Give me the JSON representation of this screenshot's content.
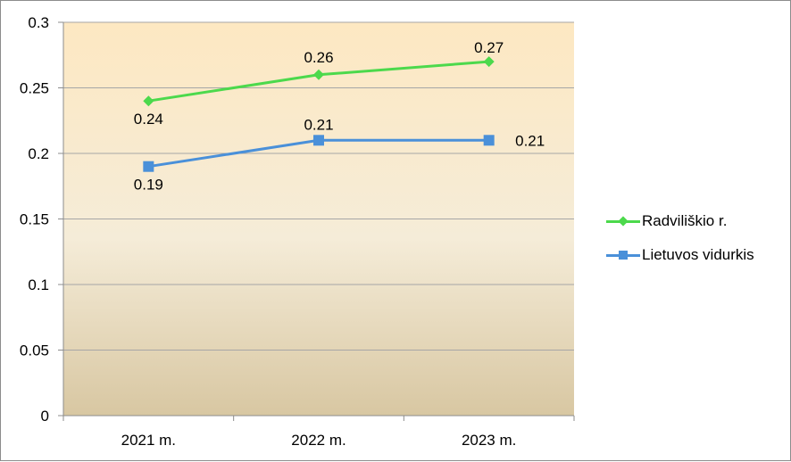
{
  "chart_data": {
    "type": "line",
    "title": "",
    "xlabel": "",
    "ylabel": "",
    "categories": [
      "2021 m.",
      "2022 m.",
      "2023 m."
    ],
    "ylim": [
      0,
      0.3
    ],
    "yticks": [
      "0",
      "0.05",
      "0.1",
      "0.15",
      "0.2",
      "0.25",
      "0.3"
    ],
    "grid": true,
    "legend_position": "right",
    "series": [
      {
        "name": "Radviliškio r.",
        "values": [
          0.24,
          0.26,
          0.27
        ],
        "labels": [
          "0.24",
          "0.26",
          "0.27"
        ],
        "color": "#4cd94c",
        "marker": "diamond"
      },
      {
        "name": "Lietuvos vidurkis",
        "values": [
          0.19,
          0.21,
          0.21
        ],
        "labels": [
          "0.19",
          "0.21",
          "0.21"
        ],
        "color": "#4a90d9",
        "marker": "square"
      }
    ]
  }
}
